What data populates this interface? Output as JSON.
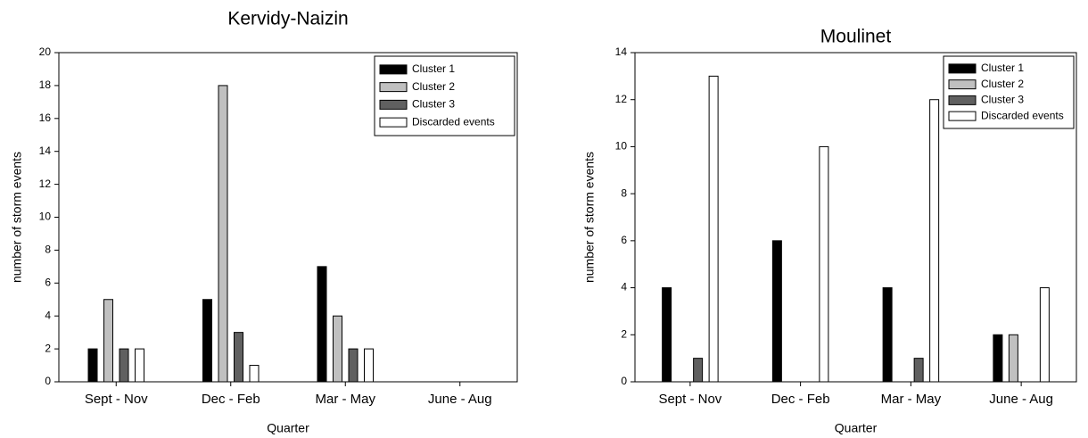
{
  "chart_data": [
    {
      "type": "bar",
      "title": "Kervidy-Naizin",
      "x_label": "Quarter",
      "y_label": "number of storm events",
      "categories": [
        "Sept - Nov",
        "Dec - Feb",
        "Mar - May",
        "June - Aug"
      ],
      "series": [
        {
          "name": "Cluster 1",
          "color": "#000000",
          "values": [
            2,
            5,
            7,
            0
          ]
        },
        {
          "name": "Cluster 2",
          "color": "#c0c0c0",
          "values": [
            5,
            18,
            4,
            0
          ]
        },
        {
          "name": "Cluster 3",
          "color": "#606060",
          "values": [
            2,
            3,
            2,
            0
          ]
        },
        {
          "name": "Discarded events",
          "color": "#ffffff",
          "values": [
            2,
            1,
            2,
            0
          ]
        }
      ],
      "ylim": [
        0,
        20
      ],
      "yticks": [
        0,
        2,
        4,
        6,
        8,
        10,
        12,
        14,
        16,
        18,
        20
      ],
      "legend": "upper right"
    },
    {
      "type": "bar",
      "title": "Moulinet",
      "x_label": "Quarter",
      "y_label": "number of storm events",
      "categories": [
        "Sept - Nov",
        "Dec - Feb",
        "Mar - May",
        "June - Aug"
      ],
      "series": [
        {
          "name": "Cluster 1",
          "color": "#000000",
          "values": [
            4,
            6,
            4,
            2
          ]
        },
        {
          "name": "Cluster 2",
          "color": "#c0c0c0",
          "values": [
            0,
            0,
            0,
            2
          ]
        },
        {
          "name": "Cluster 3",
          "color": "#606060",
          "values": [
            1,
            0,
            1,
            0
          ]
        },
        {
          "name": "Discarded events",
          "color": "#ffffff",
          "values": [
            13,
            10,
            12,
            4
          ]
        }
      ],
      "ylim": [
        0,
        14
      ],
      "yticks": [
        0,
        2,
        4,
        6,
        8,
        10,
        12,
        14
      ],
      "legend": "upper right"
    }
  ]
}
